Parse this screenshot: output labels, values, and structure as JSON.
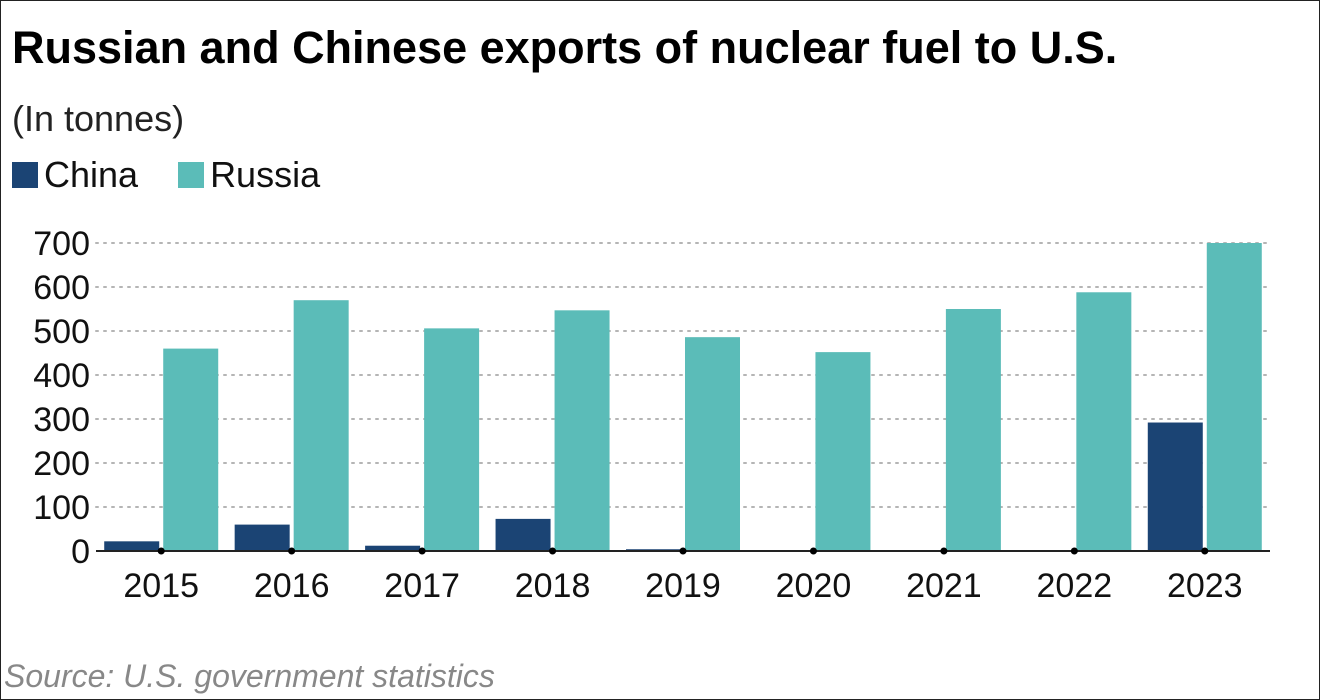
{
  "colors": {
    "china": "#1b4474",
    "russia": "#5bbcb8",
    "grid": "#b5b5b5",
    "axis": "#222222"
  },
  "chart_data": {
    "type": "bar",
    "title": "Russian and Chinese exports of nuclear fuel to U.S.",
    "subtitle": "(In tonnes)",
    "source": "Source: U.S. government statistics",
    "categories": [
      "2015",
      "2016",
      "2017",
      "2018",
      "2019",
      "2020",
      "2021",
      "2022",
      "2023"
    ],
    "series": [
      {
        "name": "China",
        "values": [
          22,
          60,
          12,
          73,
          4,
          0,
          0,
          0,
          292
        ]
      },
      {
        "name": "Russia",
        "values": [
          460,
          570,
          506,
          547,
          486,
          452,
          550,
          588,
          700
        ]
      }
    ],
    "yticks": [
      "0",
      "100",
      "200",
      "300",
      "400",
      "500",
      "600",
      "700"
    ],
    "ylim": [
      0,
      700
    ],
    "grid": true,
    "legend": "top-left"
  }
}
